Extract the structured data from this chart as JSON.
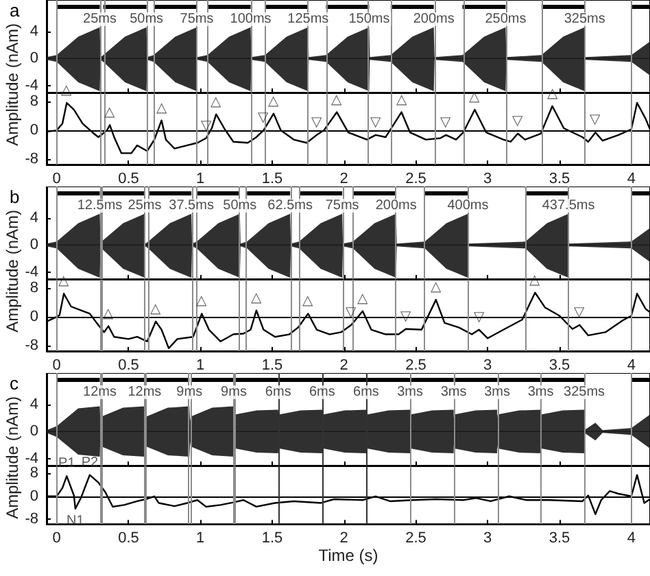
{
  "chart_data": [
    {
      "type": "line",
      "title": "a",
      "xlim": [
        -0.07,
        4.13
      ],
      "xticks": [
        0,
        0.5,
        1,
        1.5,
        2,
        2.5,
        3,
        3.5,
        4
      ],
      "ylim": [
        -5,
        8.6
      ],
      "yticks": [
        -4,
        0,
        4
      ],
      "tick_labels": "y",
      "series": [
        {
          "color": "#1a1a1a",
          "x": [
            -0.07,
            0,
            0.15,
            0.3,
            0.305,
            0.325,
            0.475,
            0.625,
            0.63,
            0.675,
            0.825,
            0.975,
            0.98,
            1.05,
            1.2,
            1.35,
            1.355,
            1.45,
            1.6,
            1.75,
            1.755,
            1.875,
            2.025,
            2.175,
            2.18,
            2.325,
            2.475,
            2.625,
            2.63,
            2.825,
            2.975,
            3.125,
            3.13,
            3.375,
            3.525,
            3.675,
            3.68,
            4.0,
            4.13
          ],
          "values": [
            0,
            0,
            0,
            0,
            0,
            0,
            0,
            0,
            0,
            0,
            0,
            0,
            0,
            0,
            0,
            0,
            0,
            0,
            0,
            0,
            0,
            0,
            0,
            0,
            0,
            0,
            0,
            0,
            0,
            0,
            0,
            0,
            0,
            0,
            0,
            0,
            0,
            0,
            0
          ],
          "upper": [
            0.2,
            0.5,
            3.2,
            4.6,
            0.2,
            0.5,
            3.2,
            4.6,
            0.2,
            0.5,
            3.2,
            4.6,
            0.2,
            0.5,
            3.2,
            4.6,
            0.2,
            0.5,
            3.2,
            4.6,
            0.2,
            0.5,
            3.2,
            4.6,
            0.2,
            0.5,
            3.2,
            4.6,
            0.2,
            0.5,
            3.2,
            4.6,
            0.2,
            0.5,
            3.2,
            4.6,
            0.2,
            0.5,
            2.5
          ],
          "lower": [
            -0.2,
            -0.5,
            -3.5,
            -4.8,
            -0.2,
            -0.5,
            -3.5,
            -4.8,
            -0.2,
            -0.5,
            -3.5,
            -4.8,
            -0.2,
            -0.5,
            -3.5,
            -4.8,
            -0.2,
            -0.5,
            -3.5,
            -4.8,
            -0.2,
            -0.5,
            -3.5,
            -4.8,
            -0.2,
            -0.5,
            -3.5,
            -4.8,
            -0.2,
            -0.5,
            -3.5,
            -4.8,
            -0.2,
            -0.5,
            -3.5,
            -4.8,
            -0.2,
            -0.5,
            -2.5
          ]
        },
        {
          "type": "line",
          "color": "#000000",
          "x": [
            0,
            0.3,
            0.31,
            0.325,
            0.625,
            0.64,
            0.675,
            0.975,
            0.99,
            1.05,
            1.35,
            1.36,
            1.45,
            1.75,
            1.76,
            1.875,
            2.175,
            2.19,
            2.325,
            2.625,
            2.64,
            2.825,
            3.125,
            3.14,
            3.375,
            3.675,
            3.69,
            4.0,
            4.13
          ],
          "values": [
            7.6,
            7.6,
            null,
            7.6,
            7.6,
            null,
            7.6,
            7.6,
            null,
            7.6,
            7.6,
            null,
            7.6,
            7.6,
            null,
            7.6,
            7.6,
            null,
            7.6,
            7.6,
            null,
            7.6,
            7.6,
            null,
            7.6,
            7.6,
            null,
            7.6,
            7.6
          ]
        }
      ],
      "ref_lines": [
        {
          "axis": "x",
          "value": 0,
          "color": "#8c8c8c"
        },
        {
          "axis": "x",
          "value": 0.3,
          "color": "#8c8c8c"
        },
        {
          "axis": "x",
          "value": 0.325,
          "color": "#8c8c8c"
        },
        {
          "axis": "x",
          "value": 0.625,
          "color": "#8c8c8c"
        },
        {
          "axis": "x",
          "value": 0.675,
          "color": "#8c8c8c"
        },
        {
          "axis": "x",
          "value": 0.975,
          "color": "#8c8c8c"
        },
        {
          "axis": "x",
          "value": 1.05,
          "color": "#8c8c8c"
        },
        {
          "axis": "x",
          "value": 1.35,
          "color": "#8c8c8c"
        },
        {
          "axis": "x",
          "value": 1.45,
          "color": "#8c8c8c"
        },
        {
          "axis": "x",
          "value": 1.75,
          "color": "#8c8c8c"
        },
        {
          "axis": "x",
          "value": 1.875,
          "color": "#8c8c8c"
        },
        {
          "axis": "x",
          "value": 2.175,
          "color": "#8c8c8c"
        },
        {
          "axis": "x",
          "value": 2.325,
          "color": "#8c8c8c"
        },
        {
          "axis": "x",
          "value": 2.625,
          "color": "#8c8c8c"
        },
        {
          "axis": "x",
          "value": 2.825,
          "color": "#8c8c8c"
        },
        {
          "axis": "x",
          "value": 3.125,
          "color": "#8c8c8c"
        },
        {
          "axis": "x",
          "value": 3.375,
          "color": "#8c8c8c"
        },
        {
          "axis": "x",
          "value": 3.675,
          "color": "#8c8c8c"
        },
        {
          "axis": "x",
          "value": 4.0,
          "color": "#8c8c8c"
        }
      ],
      "annotations": [
        {
          "text": "25ms",
          "x": 0.3,
          "y": 7.6
        },
        {
          "text": "50ms",
          "x": 0.625,
          "y": 7.6
        },
        {
          "text": "75ms",
          "x": 0.975,
          "y": 7.6
        },
        {
          "text": "100ms",
          "x": 1.35,
          "y": 7.6
        },
        {
          "text": "125ms",
          "x": 1.75,
          "y": 7.6
        },
        {
          "text": "150ms",
          "x": 2.175,
          "y": 7.6
        },
        {
          "text": "200ms",
          "x": 2.625,
          "y": 7.6
        },
        {
          "text": "250ms",
          "x": 3.125,
          "y": 7.6
        },
        {
          "text": "325ms",
          "x": 3.675,
          "y": 7.6
        }
      ]
    },
    {
      "type": "line",
      "ylabel": "Amplitude (nAm)",
      "xlim": [
        -0.07,
        4.13
      ],
      "xticks": [
        0,
        0.5,
        1,
        1.5,
        2,
        2.5,
        3,
        3.5,
        4
      ],
      "ylim": [
        -9.6,
        10.4
      ],
      "yticks": [
        -8,
        0,
        8
      ],
      "series": [
        {
          "color": "#000000",
          "x": [
            -0.07,
            0,
            0.04,
            0.07,
            0.12,
            0.18,
            0.25,
            0.29,
            0.35,
            0.37,
            0.4,
            0.45,
            0.52,
            0.56,
            0.63,
            0.68,
            0.73,
            0.76,
            0.82,
            0.91,
            0.98,
            1.04,
            1.08,
            1.11,
            1.17,
            1.23,
            1.33,
            1.39,
            1.44,
            1.51,
            1.56,
            1.65,
            1.74,
            1.81,
            1.86,
            1.95,
            2.03,
            2.16,
            2.22,
            2.29,
            2.4,
            2.46,
            2.57,
            2.67,
            2.71,
            2.78,
            2.83,
            2.91,
            2.99,
            3.11,
            3.16,
            3.21,
            3.26,
            3.37,
            3.45,
            3.53,
            3.66,
            3.7,
            3.75,
            3.8,
            3.91,
            4.0,
            4.04,
            4.1,
            4.13
          ],
          "values": [
            -0.4,
            0,
            1.9,
            7.7,
            5.8,
            1.9,
            -0.6,
            -1.9,
            0,
            1.5,
            -1.9,
            -6.4,
            -6.4,
            -4.2,
            -5.8,
            -2.6,
            2.8,
            -2.6,
            -5.1,
            -4.2,
            -3.5,
            -2.2,
            0.6,
            4.5,
            0.3,
            -3.2,
            -3.5,
            -1.9,
            0,
            4.7,
            0,
            -2.6,
            -3.5,
            -1.3,
            0,
            5.1,
            -0.6,
            -2.6,
            -1.3,
            -1.9,
            5.1,
            -0.6,
            -2.6,
            -2.2,
            -1.3,
            -2.6,
            -0.6,
            5.8,
            -0.6,
            -2.6,
            -3.2,
            -0.9,
            -2.6,
            -0.9,
            6.8,
            0.6,
            -1.9,
            -3.2,
            -0.6,
            -2.9,
            -1.3,
            0.3,
            7.7,
            3.2,
            0.3
          ]
        }
      ],
      "ref_lines": [
        {
          "axis": "y",
          "value": 0,
          "color": "#000000"
        },
        {
          "axis": "x",
          "value": 0,
          "color": "#8c8c8c"
        },
        {
          "axis": "x",
          "value": 0.3,
          "color": "#8c8c8c"
        },
        {
          "axis": "x",
          "value": 0.325,
          "color": "#8c8c8c"
        },
        {
          "axis": "x",
          "value": 0.625,
          "color": "#8c8c8c"
        },
        {
          "axis": "x",
          "value": 0.675,
          "color": "#8c8c8c"
        },
        {
          "axis": "x",
          "value": 0.975,
          "color": "#8c8c8c"
        },
        {
          "axis": "x",
          "value": 1.05,
          "color": "#8c8c8c"
        },
        {
          "axis": "x",
          "value": 1.35,
          "color": "#8c8c8c"
        },
        {
          "axis": "x",
          "value": 1.45,
          "color": "#8c8c8c"
        },
        {
          "axis": "x",
          "value": 1.75,
          "color": "#8c8c8c"
        },
        {
          "axis": "x",
          "value": 1.875,
          "color": "#8c8c8c"
        },
        {
          "axis": "x",
          "value": 2.175,
          "color": "#8c8c8c"
        },
        {
          "axis": "x",
          "value": 2.325,
          "color": "#8c8c8c"
        },
        {
          "axis": "x",
          "value": 2.625,
          "color": "#8c8c8c"
        },
        {
          "axis": "x",
          "value": 2.825,
          "color": "#8c8c8c"
        },
        {
          "axis": "x",
          "value": 3.125,
          "color": "#8c8c8c"
        },
        {
          "axis": "x",
          "value": 3.375,
          "color": "#8c8c8c"
        },
        {
          "axis": "x",
          "value": 3.675,
          "color": "#8c8c8c"
        },
        {
          "axis": "x",
          "value": 4.0,
          "color": "#8c8c8c"
        }
      ],
      "annotations": [
        {
          "text": "△",
          "x": 0.07,
          "y": 7.7
        },
        {
          "text": "△",
          "x": 0.37,
          "y": 1.5
        },
        {
          "text": "△",
          "x": 0.73,
          "y": 2.8
        },
        {
          "text": "△",
          "x": 1.11,
          "y": 4.5
        },
        {
          "text": "△",
          "x": 1.51,
          "y": 4.7
        },
        {
          "text": "△",
          "x": 1.95,
          "y": 5.1
        },
        {
          "text": "△",
          "x": 2.4,
          "y": 5.1
        },
        {
          "text": "△",
          "x": 2.91,
          "y": 5.8
        },
        {
          "text": "△",
          "x": 3.45,
          "y": 6.8
        },
        {
          "text": "▽",
          "x": 1.04,
          "y": -2.2
        },
        {
          "text": "▽",
          "x": 1.44,
          "y": 0
        },
        {
          "text": "▽",
          "x": 1.81,
          "y": -1.3
        },
        {
          "text": "▽",
          "x": 2.22,
          "y": -1.3
        },
        {
          "text": "▽",
          "x": 2.71,
          "y": -1.3
        },
        {
          "text": "▽",
          "x": 3.21,
          "y": -0.9
        },
        {
          "text": "▽",
          "x": 3.75,
          "y": -0.6
        }
      ]
    },
    {
      "type": "line",
      "title": "b",
      "xlim": [
        -0.07,
        4.13
      ],
      "xticks": [
        0,
        0.5,
        1,
        1.5,
        2,
        2.5,
        3,
        3.5,
        4
      ],
      "ylim": [
        -5,
        8.6
      ],
      "yticks": [
        -4,
        0,
        4
      ],
      "tick_labels": "y",
      "series": [
        {
          "color": "#1a1a1a",
          "x": [
            -0.07,
            0,
            0.15,
            0.3,
            0.305,
            0.3125,
            0.4625,
            0.6125,
            0.6175,
            0.6375,
            0.7875,
            0.9375,
            0.9425,
            0.975,
            1.125,
            1.275,
            1.28,
            1.325,
            1.475,
            1.625,
            1.63,
            1.6875,
            1.8375,
            1.9875,
            1.9925,
            2.0625,
            2.2125,
            2.3625,
            2.3675,
            2.5625,
            2.7125,
            2.8625,
            2.8675,
            3.2625,
            3.4125,
            3.5625,
            3.5675,
            4.0,
            4.13
          ],
          "values": [
            0,
            0,
            0,
            0,
            0,
            0,
            0,
            0,
            0,
            0,
            0,
            0,
            0,
            0,
            0,
            0,
            0,
            0,
            0,
            0,
            0,
            0,
            0,
            0,
            0,
            0,
            0,
            0,
            0,
            0,
            0,
            0,
            0,
            0,
            0,
            0,
            0,
            0,
            0
          ],
          "upper": [
            0.2,
            0.5,
            3.2,
            4.6,
            0.2,
            0.5,
            3.2,
            4.6,
            0.2,
            0.5,
            3.2,
            4.6,
            0.2,
            0.5,
            3.2,
            4.6,
            0.2,
            0.5,
            3.2,
            4.6,
            0.2,
            0.5,
            3.2,
            4.6,
            0.2,
            0.5,
            3.2,
            4.6,
            0.2,
            0.5,
            3.2,
            4.6,
            0.2,
            0.5,
            3.2,
            4.6,
            0.2,
            0.5,
            2.5
          ],
          "lower": [
            -0.2,
            -0.5,
            -3.5,
            -4.8,
            -0.2,
            -0.5,
            -3.5,
            -4.8,
            -0.2,
            -0.5,
            -3.5,
            -4.8,
            -0.2,
            -0.5,
            -3.5,
            -4.8,
            -0.2,
            -0.5,
            -3.5,
            -4.8,
            -0.2,
            -0.5,
            -3.5,
            -4.8,
            -0.2,
            -0.5,
            -3.5,
            -4.8,
            -0.2,
            -0.5,
            -3.5,
            -4.8,
            -0.2,
            -0.5,
            -3.5,
            -4.8,
            -0.2,
            -0.5,
            -2.5
          ]
        },
        {
          "type": "line",
          "color": "#000000",
          "x": [
            0,
            0.3,
            0.305,
            0.3125,
            0.6125,
            0.62,
            0.6375,
            0.9375,
            0.95,
            0.975,
            1.275,
            1.29,
            1.325,
            1.625,
            1.64,
            1.6875,
            1.9875,
            2.0,
            2.0625,
            2.3625,
            2.38,
            2.5625,
            2.8625,
            2.88,
            3.2625,
            3.5625,
            3.58,
            4.0,
            4.13
          ],
          "values": [
            7.6,
            7.6,
            null,
            7.6,
            7.6,
            null,
            7.6,
            7.6,
            null,
            7.6,
            7.6,
            null,
            7.6,
            7.6,
            null,
            7.6,
            7.6,
            null,
            7.6,
            7.6,
            null,
            7.6,
            7.6,
            null,
            7.6,
            7.6,
            null,
            7.6,
            7.6
          ]
        }
      ],
      "ref_lines": [
        {
          "axis": "x",
          "value": 0,
          "color": "#8c8c8c"
        },
        {
          "axis": "x",
          "value": 0.3,
          "color": "#8c8c8c"
        },
        {
          "axis": "x",
          "value": 0.3125,
          "color": "#8c8c8c"
        },
        {
          "axis": "x",
          "value": 0.6125,
          "color": "#8c8c8c"
        },
        {
          "axis": "x",
          "value": 0.6375,
          "color": "#8c8c8c"
        },
        {
          "axis": "x",
          "value": 0.9375,
          "color": "#8c8c8c"
        },
        {
          "axis": "x",
          "value": 0.975,
          "color": "#8c8c8c"
        },
        {
          "axis": "x",
          "value": 1.275,
          "color": "#8c8c8c"
        },
        {
          "axis": "x",
          "value": 1.325,
          "color": "#8c8c8c"
        },
        {
          "axis": "x",
          "value": 1.625,
          "color": "#8c8c8c"
        },
        {
          "axis": "x",
          "value": 1.6875,
          "color": "#8c8c8c"
        },
        {
          "axis": "x",
          "value": 1.9875,
          "color": "#8c8c8c"
        },
        {
          "axis": "x",
          "value": 2.0625,
          "color": "#8c8c8c"
        },
        {
          "axis": "x",
          "value": 2.3625,
          "color": "#8c8c8c"
        },
        {
          "axis": "x",
          "value": 2.5625,
          "color": "#8c8c8c"
        },
        {
          "axis": "x",
          "value": 2.8625,
          "color": "#8c8c8c"
        },
        {
          "axis": "x",
          "value": 3.2625,
          "color": "#8c8c8c"
        },
        {
          "axis": "x",
          "value": 3.5625,
          "color": "#8c8c8c"
        },
        {
          "axis": "x",
          "value": 4.0,
          "color": "#8c8c8c"
        }
      ],
      "annotations": [
        {
          "text": "12.5ms",
          "x": 0.3,
          "y": 7.6
        },
        {
          "text": "25ms",
          "x": 0.6125,
          "y": 7.6
        },
        {
          "text": "37.5ms",
          "x": 0.9375,
          "y": 7.6
        },
        {
          "text": "50ms",
          "x": 1.275,
          "y": 7.6
        },
        {
          "text": "62.5ms",
          "x": 1.625,
          "y": 7.6
        },
        {
          "text": "75ms",
          "x": 1.9875,
          "y": 7.6
        },
        {
          "text": "200ms",
          "x": 2.3625,
          "y": 7.6
        },
        {
          "text": "400ms",
          "x": 2.8625,
          "y": 7.6
        },
        {
          "text": "437.5ms",
          "x": 3.5625,
          "y": 7.6
        }
      ]
    },
    {
      "type": "line",
      "ylabel": "Amplitude (nAm)",
      "xlim": [
        -0.07,
        4.13
      ],
      "xticks": [
        0,
        0.5,
        1,
        1.5,
        2,
        2.5,
        3,
        3.5,
        4
      ],
      "ylim": [
        -9.6,
        10.4
      ],
      "yticks": [
        -8,
        0,
        8
      ],
      "series": [
        {
          "color": "#000000",
          "x": [
            -0.07,
            0,
            0.02,
            0.05,
            0.1,
            0.17,
            0.23,
            0.29,
            0.33,
            0.36,
            0.4,
            0.5,
            0.56,
            0.63,
            0.69,
            0.73,
            0.78,
            0.84,
            0.95,
            1.01,
            1.06,
            1.14,
            1.23,
            1.3,
            1.35,
            1.39,
            1.44,
            1.52,
            1.62,
            1.68,
            1.75,
            1.81,
            1.9,
            1.98,
            2.05,
            2.13,
            2.19,
            2.29,
            2.38,
            2.43,
            2.54,
            2.64,
            2.7,
            2.8,
            2.89,
            2.94,
            3.0,
            3.11,
            3.24,
            3.33,
            3.4,
            3.5,
            3.59,
            3.64,
            3.7,
            3.82,
            3.94,
            4.0,
            4.04,
            4.1,
            4.13
          ],
          "values": [
            -1.3,
            0,
            0.5,
            6.5,
            2.9,
            1.8,
            0.9,
            -2.3,
            -4.3,
            -2.6,
            -5.6,
            -6.2,
            -5.6,
            -6.9,
            -1.3,
            -3.6,
            -8.8,
            -6.2,
            -5.6,
            0.9,
            -3.6,
            -6.9,
            -4.9,
            -4.7,
            -3.6,
            1.8,
            -3.6,
            -5.6,
            -4.9,
            -3.0,
            0.9,
            -3.6,
            -4.9,
            -4.3,
            -2.3,
            1.6,
            -3.6,
            -4.9,
            -4.9,
            -3.4,
            -3.6,
            4.8,
            -1.7,
            -3.0,
            -4.9,
            -3.6,
            -6.0,
            -3.6,
            -0.8,
            6.8,
            2.6,
            0.3,
            -3.4,
            -2.3,
            -5.2,
            -4.3,
            -1.0,
            0.3,
            6.5,
            2.2,
            1.3
          ]
        }
      ],
      "ref_lines": [
        {
          "axis": "y",
          "value": 0,
          "color": "#000000"
        },
        {
          "axis": "x",
          "value": 0,
          "color": "#8c8c8c"
        },
        {
          "axis": "x",
          "value": 0.3,
          "color": "#8c8c8c"
        },
        {
          "axis": "x",
          "value": 0.3125,
          "color": "#8c8c8c"
        },
        {
          "axis": "x",
          "value": 0.6125,
          "color": "#8c8c8c"
        },
        {
          "axis": "x",
          "value": 0.6375,
          "color": "#8c8c8c"
        },
        {
          "axis": "x",
          "value": 0.9375,
          "color": "#8c8c8c"
        },
        {
          "axis": "x",
          "value": 0.975,
          "color": "#8c8c8c"
        },
        {
          "axis": "x",
          "value": 1.275,
          "color": "#8c8c8c"
        },
        {
          "axis": "x",
          "value": 1.325,
          "color": "#8c8c8c"
        },
        {
          "axis": "x",
          "value": 1.625,
          "color": "#8c8c8c"
        },
        {
          "axis": "x",
          "value": 1.6875,
          "color": "#8c8c8c"
        },
        {
          "axis": "x",
          "value": 1.9875,
          "color": "#8c8c8c"
        },
        {
          "axis": "x",
          "value": 2.0625,
          "color": "#8c8c8c"
        },
        {
          "axis": "x",
          "value": 2.3625,
          "color": "#8c8c8c"
        },
        {
          "axis": "x",
          "value": 2.5625,
          "color": "#8c8c8c"
        },
        {
          "axis": "x",
          "value": 2.8625,
          "color": "#8c8c8c"
        },
        {
          "axis": "x",
          "value": 3.2625,
          "color": "#8c8c8c"
        },
        {
          "axis": "x",
          "value": 3.5625,
          "color": "#8c8c8c"
        },
        {
          "axis": "x",
          "value": 4.0,
          "color": "#8c8c8c"
        }
      ],
      "annotations": [
        {
          "text": "△",
          "x": 0.05,
          "y": 6.5
        },
        {
          "text": "△",
          "x": 0.36,
          "y": -2.6
        },
        {
          "text": "△",
          "x": 0.69,
          "y": -1.3
        },
        {
          "text": "△",
          "x": 1.01,
          "y": 0.9
        },
        {
          "text": "△",
          "x": 1.39,
          "y": 1.8
        },
        {
          "text": "△",
          "x": 1.75,
          "y": 0.9
        },
        {
          "text": "△",
          "x": 2.13,
          "y": 1.6
        },
        {
          "text": "△",
          "x": 2.64,
          "y": 4.8
        },
        {
          "text": "△",
          "x": 3.33,
          "y": 6.8
        },
        {
          "text": "▽",
          "x": 2.05,
          "y": -2.3
        },
        {
          "text": "▽",
          "x": 2.43,
          "y": -3.4
        },
        {
          "text": "▽",
          "x": 2.94,
          "y": -3.6
        },
        {
          "text": "▽",
          "x": 3.64,
          "y": -2.3
        }
      ]
    },
    {
      "type": "line",
      "title": "c",
      "xlim": [
        -0.07,
        4.13
      ],
      "xticks": [
        0,
        0.5,
        1,
        1.5,
        2,
        2.5,
        3,
        3.5,
        4
      ],
      "ylim": [
        -5,
        8.6
      ],
      "yticks": [
        -4,
        0,
        4
      ],
      "tick_labels": "y",
      "series": [
        {
          "color": "#1a1a1a",
          "x": [
            -0.07,
            0,
            0.15,
            0.3,
            0.305,
            0.312,
            0.462,
            0.612,
            0.617,
            0.624,
            0.774,
            0.924,
            0.929,
            0.933,
            1.083,
            1.233,
            1.238,
            1.242,
            1.392,
            1.542,
            1.545,
            1.548,
            1.698,
            1.848,
            1.851,
            1.854,
            2.004,
            2.154,
            2.157,
            2.16,
            2.31,
            2.46,
            2.461,
            2.463,
            2.613,
            2.763,
            2.764,
            2.766,
            2.916,
            3.066,
            3.067,
            3.069,
            3.219,
            3.369,
            3.37,
            3.372,
            3.522,
            3.672,
            3.68,
            3.75,
            3.8,
            4.0,
            4.13
          ],
          "values": [
            0,
            0,
            0,
            0,
            0,
            0,
            0,
            0,
            0,
            0,
            0,
            0,
            0,
            0,
            0,
            0,
            0,
            0,
            0,
            0,
            0,
            0,
            0,
            0,
            0,
            0,
            0,
            0,
            0,
            0,
            0,
            0,
            0,
            0,
            0,
            0,
            0,
            0,
            0,
            0,
            0,
            0,
            0,
            0,
            0,
            0,
            0,
            0,
            0,
            0,
            0,
            0,
            0
          ],
          "upper": [
            0.2,
            0.8,
            3.4,
            3.7,
            0.5,
            2.2,
            3.5,
            3.7,
            1.5,
            2.2,
            3.5,
            3.7,
            1.5,
            2.2,
            3.5,
            3.7,
            1.5,
            2.5,
            3.1,
            3.2,
            2,
            2.5,
            3.1,
            3.2,
            2,
            2.5,
            3.1,
            3.2,
            2,
            2.5,
            3.1,
            3.2,
            2,
            2.5,
            3.1,
            3.2,
            2,
            2.5,
            3.1,
            3.2,
            2,
            2.5,
            3.1,
            3.2,
            2,
            2.5,
            3.1,
            3.2,
            0.3,
            1.3,
            0.2,
            0.5,
            2.5
          ],
          "lower": [
            -0.2,
            -0.8,
            -3.4,
            -3.7,
            -0.5,
            -2.2,
            -3.5,
            -3.7,
            -1.5,
            -2.2,
            -3.5,
            -3.7,
            -1.5,
            -2.2,
            -3.5,
            -3.7,
            -1.5,
            -2.5,
            -3.1,
            -3.2,
            -2,
            -2.5,
            -3.1,
            -3.2,
            -2,
            -2.5,
            -3.1,
            -3.2,
            -2,
            -2.5,
            -3.1,
            -3.2,
            -2,
            -2.5,
            -3.1,
            -3.2,
            -2,
            -2.5,
            -3.1,
            -3.2,
            -2,
            -2.5,
            -3.1,
            -3.2,
            -2,
            -2.5,
            -3.1,
            -3.2,
            -0.3,
            -1.3,
            -0.2,
            -0.5,
            -2.5
          ]
        },
        {
          "type": "line",
          "color": "#000000",
          "x": [
            0,
            0.3,
            0.306,
            0.312,
            0.612,
            0.618,
            0.624,
            0.924,
            0.928,
            0.933,
            1.233,
            1.237,
            1.242,
            1.542,
            1.545,
            1.548,
            1.848,
            1.851,
            1.854,
            2.154,
            2.157,
            2.16,
            2.46,
            2.461,
            2.463,
            2.763,
            2.764,
            2.766,
            3.066,
            3.067,
            3.069,
            3.369,
            3.37,
            3.372,
            3.672,
            3.7,
            4.0,
            4.13
          ],
          "values": [
            7.6,
            7.6,
            null,
            7.6,
            7.6,
            null,
            7.6,
            7.6,
            null,
            7.6,
            7.6,
            null,
            7.6,
            7.6,
            null,
            7.6,
            7.6,
            null,
            7.6,
            7.6,
            null,
            7.6,
            7.6,
            null,
            7.6,
            7.6,
            null,
            7.6,
            7.6,
            null,
            7.6,
            7.6,
            null,
            7.6,
            7.6,
            null,
            7.6,
            7.6
          ]
        }
      ],
      "ref_lines": [
        {
          "axis": "x",
          "value": 0,
          "color": "#8c8c8c"
        },
        {
          "axis": "x",
          "value": 0.3,
          "color": "#8c8c8c"
        },
        {
          "axis": "x",
          "value": 0.312,
          "color": "#8c8c8c"
        },
        {
          "axis": "x",
          "value": 0.612,
          "color": "#8c8c8c"
        },
        {
          "axis": "x",
          "value": 0.624,
          "color": "#8c8c8c"
        },
        {
          "axis": "x",
          "value": 0.924,
          "color": "#8c8c8c"
        },
        {
          "axis": "x",
          "value": 0.933,
          "color": "#8c8c8c"
        },
        {
          "axis": "x",
          "value": 1.233,
          "color": "#8c8c8c"
        },
        {
          "axis": "x",
          "value": 1.242,
          "color": "#8c8c8c"
        },
        {
          "axis": "x",
          "value": 1.548,
          "color": "#333333"
        },
        {
          "axis": "x",
          "value": 1.854,
          "color": "#333333"
        },
        {
          "axis": "x",
          "value": 2.16,
          "color": "#333333"
        },
        {
          "axis": "x",
          "value": 2.463,
          "color": "#8c8c8c"
        },
        {
          "axis": "x",
          "value": 2.766,
          "color": "#8c8c8c"
        },
        {
          "axis": "x",
          "value": 3.069,
          "color": "#8c8c8c"
        },
        {
          "axis": "x",
          "value": 3.372,
          "color": "#8c8c8c"
        },
        {
          "axis": "x",
          "value": 3.672,
          "color": "#8c8c8c"
        },
        {
          "axis": "x",
          "value": 4.0,
          "color": "#8c8c8c"
        }
      ],
      "annotations": [
        {
          "text": "12ms",
          "x": 0.3,
          "y": 7.6
        },
        {
          "text": "12ms",
          "x": 0.612,
          "y": 7.6
        },
        {
          "text": "9ms",
          "x": 0.924,
          "y": 7.6
        },
        {
          "text": "9ms",
          "x": 1.233,
          "y": 7.6
        },
        {
          "text": "6ms",
          "x": 1.542,
          "y": 7.6
        },
        {
          "text": "6ms",
          "x": 1.848,
          "y": 7.6
        },
        {
          "text": "6ms",
          "x": 2.154,
          "y": 7.6
        },
        {
          "text": "3ms",
          "x": 2.46,
          "y": 7.6
        },
        {
          "text": "3ms",
          "x": 2.763,
          "y": 7.6
        },
        {
          "text": "3ms",
          "x": 3.066,
          "y": 7.6
        },
        {
          "text": "3ms",
          "x": 3.369,
          "y": 7.6
        },
        {
          "text": "325ms",
          "x": 3.672,
          "y": 7.6
        }
      ]
    },
    {
      "type": "line",
      "ylabel": "Amplitude (nAm)",
      "xlabel": "Time (s)",
      "xlim": [
        -0.07,
        4.13
      ],
      "xticks": [
        0,
        0.5,
        1,
        1.5,
        2,
        2.5,
        3,
        3.5,
        4
      ],
      "ylim": [
        -9.6,
        10.4
      ],
      "yticks": [
        -8,
        0,
        8
      ],
      "series": [
        {
          "color": "#000000",
          "x": [
            -0.07,
            0,
            0.04,
            0.07,
            0.12,
            0.13,
            0.17,
            0.23,
            0.29,
            0.34,
            0.39,
            0.47,
            0.56,
            0.62,
            0.68,
            0.71,
            0.82,
            0.91,
            0.98,
            1.04,
            1.14,
            1.23,
            1.3,
            1.39,
            1.52,
            1.65,
            1.84,
            1.93,
            2.13,
            2.22,
            2.32,
            2.48,
            2.64,
            2.83,
            2.92,
            3.02,
            3.15,
            3.27,
            3.43,
            3.66,
            3.7,
            3.75,
            3.79,
            3.85,
            3.91,
            4.0,
            4.04,
            4.09,
            4.13
          ],
          "values": [
            0,
            0,
            2.9,
            7.0,
            0.3,
            -4.3,
            -0.4,
            7.4,
            4.8,
            1.3,
            -3.6,
            -3.0,
            -1.7,
            -1.0,
            0,
            -2.3,
            -3.4,
            -2.3,
            -1.3,
            -3.6,
            -3.0,
            -2.1,
            -1.3,
            -3.6,
            -2.3,
            -1.7,
            -2.3,
            -1.0,
            -1.3,
            0,
            -1.7,
            -1.3,
            -1.0,
            -1.3,
            -0.6,
            -1.7,
            0,
            -1.3,
            -1.3,
            -1.7,
            0.3,
            -6.2,
            -1.3,
            1.8,
            0.9,
            0,
            7.4,
            -2.3,
            -1.0
          ]
        }
      ],
      "ref_lines": [
        {
          "axis": "y",
          "value": 0,
          "color": "#000000"
        },
        {
          "axis": "x",
          "value": 0,
          "color": "#8c8c8c"
        },
        {
          "axis": "x",
          "value": 0.3,
          "color": "#8c8c8c"
        },
        {
          "axis": "x",
          "value": 0.312,
          "color": "#8c8c8c"
        },
        {
          "axis": "x",
          "value": 0.612,
          "color": "#8c8c8c"
        },
        {
          "axis": "x",
          "value": 0.624,
          "color": "#8c8c8c"
        },
        {
          "axis": "x",
          "value": 0.924,
          "color": "#8c8c8c"
        },
        {
          "axis": "x",
          "value": 0.933,
          "color": "#8c8c8c"
        },
        {
          "axis": "x",
          "value": 1.233,
          "color": "#8c8c8c"
        },
        {
          "axis": "x",
          "value": 1.242,
          "color": "#8c8c8c"
        },
        {
          "axis": "x",
          "value": 1.548,
          "color": "#333333"
        },
        {
          "axis": "x",
          "value": 1.854,
          "color": "#333333"
        },
        {
          "axis": "x",
          "value": 2.16,
          "color": "#333333"
        },
        {
          "axis": "x",
          "value": 2.463,
          "color": "#8c8c8c"
        },
        {
          "axis": "x",
          "value": 2.766,
          "color": "#8c8c8c"
        },
        {
          "axis": "x",
          "value": 3.069,
          "color": "#8c8c8c"
        },
        {
          "axis": "x",
          "value": 3.372,
          "color": "#8c8c8c"
        },
        {
          "axis": "x",
          "value": 3.672,
          "color": "#8c8c8c"
        },
        {
          "axis": "x",
          "value": 4.0,
          "color": "#8c8c8c"
        }
      ],
      "annotations": [
        {
          "text": "P1",
          "x": 0.07,
          "y": 7.0
        },
        {
          "text": "P2",
          "x": 0.23,
          "y": 7.4
        },
        {
          "text": "N1",
          "x": 0.13,
          "y": -4.3
        }
      ]
    }
  ]
}
